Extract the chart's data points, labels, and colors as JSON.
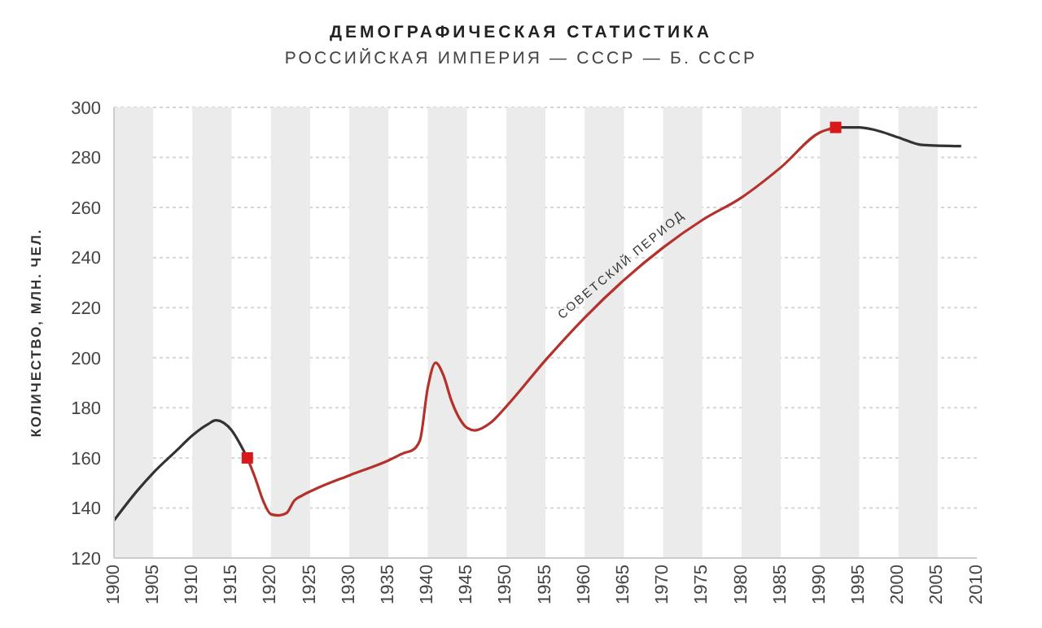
{
  "chart_data": {
    "type": "line",
    "title": "ДЕМОГРАФИЧЕСКАЯ СТАТИСТИКА",
    "subtitle": "РОССИЙСКАЯ ИМПЕРИЯ — СССР — Б. СССР",
    "ylabel": "КОЛИЧЕСТВО, МЛН. ЧЕЛ.",
    "xlim": [
      1900,
      2010
    ],
    "xticks": [
      1900,
      1905,
      1910,
      1915,
      1920,
      1925,
      1930,
      1935,
      1940,
      1945,
      1950,
      1955,
      1960,
      1965,
      1970,
      1975,
      1980,
      1985,
      1990,
      1995,
      2000,
      2005,
      2010
    ],
    "ylim": [
      120,
      300
    ],
    "yticks": [
      120,
      140,
      160,
      180,
      200,
      220,
      240,
      260,
      280,
      300
    ],
    "grid": "y",
    "line_style": "solid",
    "series": [
      {
        "color": "#333333",
        "x": [
          1900,
          1903,
          1905,
          1908,
          1910,
          1912,
          1913,
          1914,
          1915,
          1916,
          1917
        ],
        "values": [
          135,
          147,
          154,
          163,
          169,
          173.5,
          175,
          174,
          171,
          166,
          160
        ]
      },
      {
        "color": "#b5312c",
        "x": [
          1917,
          1918,
          1919,
          1920,
          1921,
          1922,
          1923,
          1924,
          1926,
          1930,
          1935,
          1937,
          1938,
          1939,
          1940,
          1941,
          1942,
          1943,
          1944,
          1945,
          1946,
          1948,
          1950,
          1955,
          1960,
          1965,
          1970,
          1975,
          1980,
          1985,
          1990,
          1992
        ],
        "values": [
          160,
          152,
          143,
          137.5,
          137,
          138,
          143,
          145,
          148,
          153,
          159,
          162,
          163,
          167,
          188,
          198,
          193,
          183,
          176,
          172,
          171,
          174,
          180.5,
          199,
          216,
          231,
          244,
          255,
          264,
          276,
          290,
          292
        ]
      },
      {
        "color": "#333333",
        "x": [
          1992,
          1995,
          1997,
          2000,
          2003,
          2008
        ],
        "values": [
          292,
          292,
          291,
          288,
          285,
          284.5
        ]
      },
      {
        "type": "scatter",
        "color": "#d7191c",
        "marker": "square",
        "x": [
          1917,
          1992
        ],
        "values": [
          160,
          292
        ]
      }
    ],
    "bands": [
      {
        "axis": "x",
        "from": 1900,
        "to": 1905,
        "color": "#ebebeb"
      },
      {
        "axis": "x",
        "from": 1910,
        "to": 1915,
        "color": "#ebebeb"
      },
      {
        "axis": "x",
        "from": 1920,
        "to": 1925,
        "color": "#ebebeb"
      },
      {
        "axis": "x",
        "from": 1930,
        "to": 1935,
        "color": "#ebebeb"
      },
      {
        "axis": "x",
        "from": 1940,
        "to": 1945,
        "color": "#ebebeb"
      },
      {
        "axis": "x",
        "from": 1950,
        "to": 1955,
        "color": "#ebebeb"
      },
      {
        "axis": "x",
        "from": 1960,
        "to": 1965,
        "color": "#ebebeb"
      },
      {
        "axis": "x",
        "from": 1970,
        "to": 1975,
        "color": "#ebebeb"
      },
      {
        "axis": "x",
        "from": 1980,
        "to": 1985,
        "color": "#ebebeb"
      },
      {
        "axis": "x",
        "from": 1990,
        "to": 1995,
        "color": "#ebebeb"
      },
      {
        "axis": "x",
        "from": 2000,
        "to": 2005,
        "color": "#ebebeb"
      }
    ],
    "annotations": [
      {
        "text": "СОВЕТСКИЙ ПЕРИОД",
        "x": 1965,
        "y": 236
      }
    ]
  }
}
